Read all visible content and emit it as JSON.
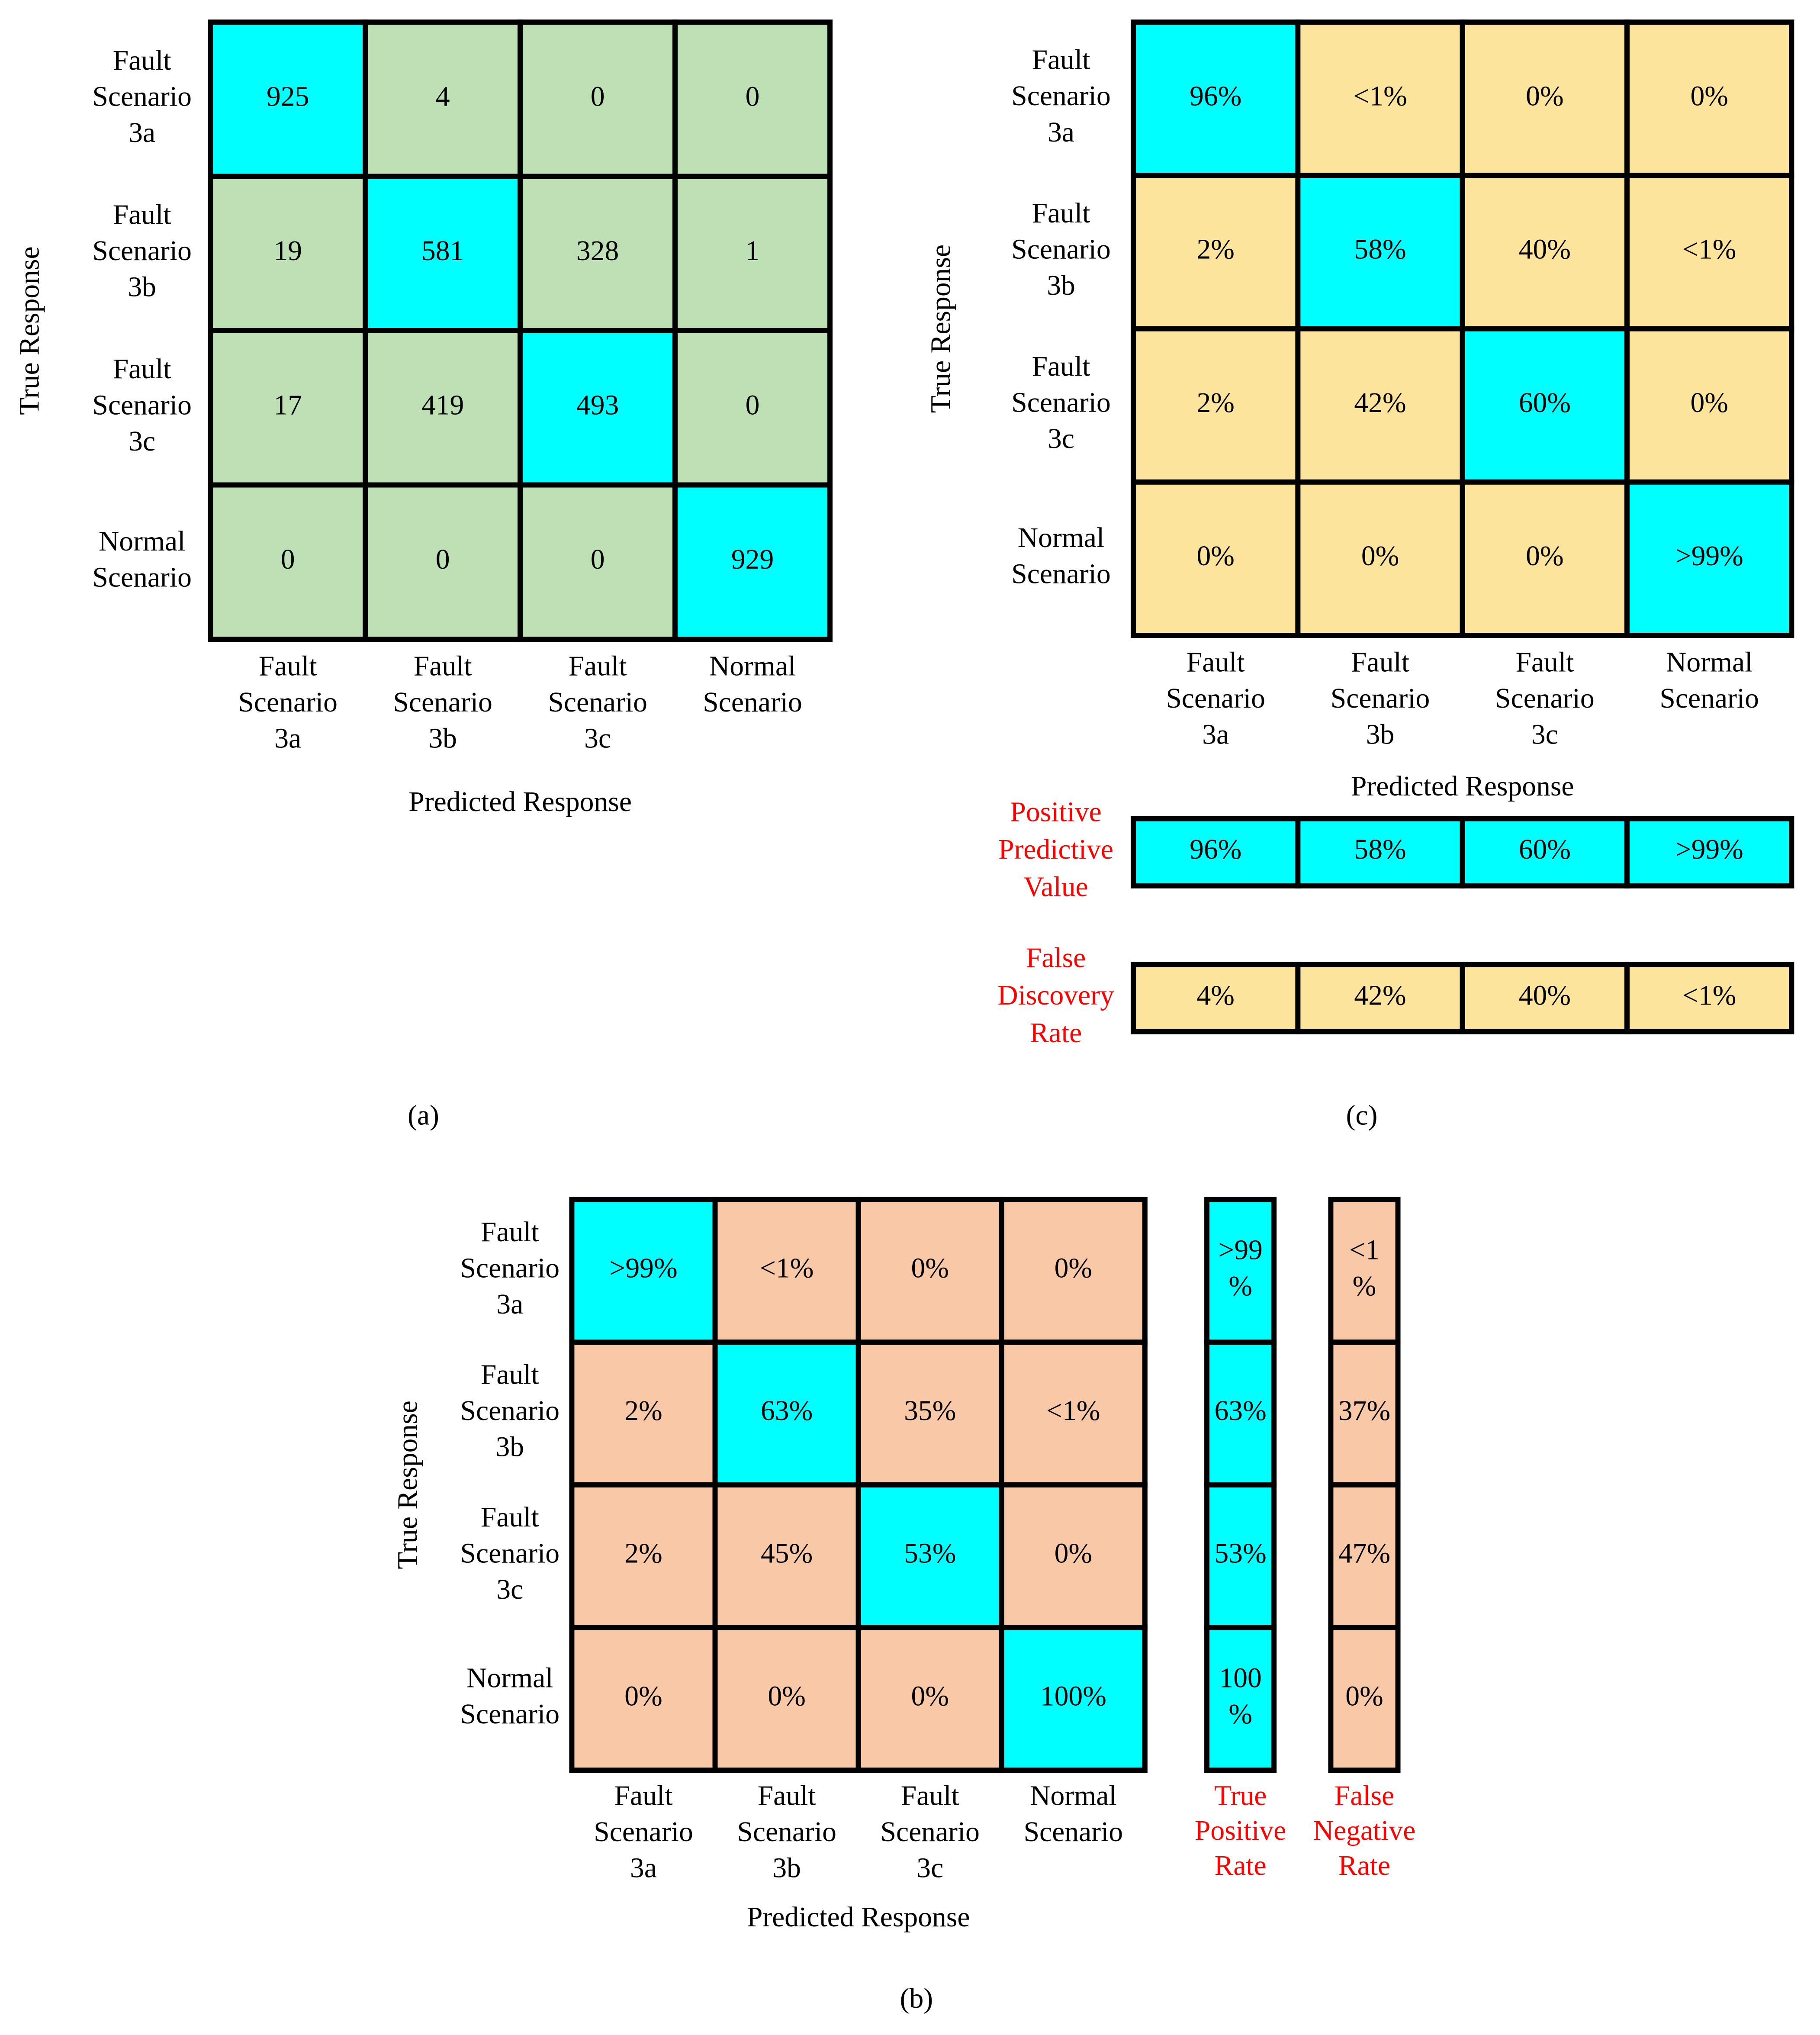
{
  "chart_data": [
    {
      "type": "heatmap",
      "caption": "(a)",
      "x_label": "Predicted Response",
      "y_label": "True Response",
      "categories": [
        "Fault Scenario 3a",
        "Fault Scenario 3b",
        "Fault Scenario 3c",
        "Normal Scenario"
      ],
      "y_categories": [
        "Fault Scenario 3a",
        "Fault Scenario 3b",
        "Fault Scenario 3c",
        "Normal Scenario"
      ],
      "color": "#bde0b5",
      "highlight_color": "#00ffff",
      "values": [
        [
          925,
          4,
          0,
          0
        ],
        [
          19,
          581,
          328,
          1
        ],
        [
          17,
          419,
          493,
          0
        ],
        [
          0,
          0,
          0,
          929
        ]
      ]
    },
    {
      "type": "heatmap",
      "caption": "(c)",
      "x_label": "Predicted Response",
      "y_label": "True Response",
      "categories": [
        "Fault Scenario 3a",
        "Fault Scenario 3b",
        "Fault Scenario 3c",
        "Normal Scenario"
      ],
      "y_categories": [
        "Fault Scenario 3a",
        "Fault Scenario 3b",
        "Fault Scenario 3c",
        "Normal Scenario"
      ],
      "color": "#fde49c",
      "highlight_color": "#00ffff",
      "values": [
        [
          96,
          0.4,
          0,
          0
        ],
        [
          2,
          58,
          40,
          0.1
        ],
        [
          2,
          42,
          60,
          0
        ],
        [
          0,
          0,
          0,
          99.9
        ]
      ],
      "value_labels": [
        [
          "96%",
          "<1%",
          "0%",
          "0%"
        ],
        [
          "2%",
          "58%",
          "40%",
          "<1%"
        ],
        [
          "2%",
          "42%",
          "60%",
          "0%"
        ],
        [
          "0%",
          "0%",
          "0%",
          ">99%"
        ]
      ],
      "summary_rows": [
        {
          "name": "Positive Predictive Value",
          "color": "#00ffff",
          "values": [
            96,
            58,
            60,
            99.9
          ],
          "value_labels": [
            "96%",
            "58%",
            "60%",
            ">99%"
          ]
        },
        {
          "name": "False Discovery Rate",
          "color": "#fde49c",
          "values": [
            4,
            42,
            40,
            0.1
          ],
          "value_labels": [
            "4%",
            "42%",
            "40%",
            "<1%"
          ]
        }
      ]
    },
    {
      "type": "heatmap",
      "caption": "(b)",
      "x_label": "Predicted Response",
      "y_label": "True Response",
      "categories": [
        "Fault Scenario 3a",
        "Fault Scenario 3b",
        "Fault Scenario 3c",
        "Normal Scenario"
      ],
      "y_categories": [
        "Fault Scenario 3a",
        "Fault Scenario 3b",
        "Fault Scenario 3c",
        "Normal Scenario"
      ],
      "color": "#f9c9a7",
      "highlight_color": "#00ffff",
      "values": [
        [
          99.6,
          0.4,
          0,
          0
        ],
        [
          2,
          63,
          35,
          0.1
        ],
        [
          2,
          45,
          53,
          0
        ],
        [
          0,
          0,
          0,
          100
        ]
      ],
      "value_labels": [
        [
          ">99%",
          "<1%",
          "0%",
          "0%"
        ],
        [
          "2%",
          "63%",
          "35%",
          "<1%"
        ],
        [
          "2%",
          "45%",
          "53%",
          "0%"
        ],
        [
          "0%",
          "0%",
          "0%",
          "100%"
        ]
      ],
      "summary_columns": [
        {
          "name": "True Positive Rate",
          "color": "#00ffff",
          "values": [
            99.6,
            63,
            53,
            100
          ],
          "value_labels": [
            ">99%",
            "63%",
            "53%",
            "100%"
          ]
        },
        {
          "name": "False Negative Rate",
          "color": "#f9c9a7",
          "values": [
            0.4,
            37,
            47,
            0
          ],
          "value_labels": [
            "<1%",
            "37%",
            "47%",
            "0%"
          ]
        }
      ]
    }
  ]
}
